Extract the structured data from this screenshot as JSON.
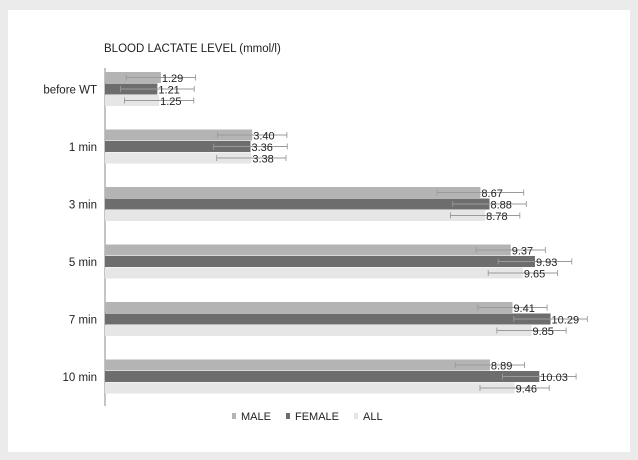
{
  "chart_data": {
    "type": "bar",
    "orientation": "horizontal",
    "title": "BLOOD LACTATE LEVEL (mmol/l)",
    "categories": [
      "before WT",
      "1 min",
      "3 min",
      "5 min",
      "7 min",
      "10 min"
    ],
    "series": [
      {
        "name": "MALE",
        "color": "#b4b4b4",
        "values": [
          1.29,
          3.4,
          8.67,
          9.37,
          9.41,
          8.89
        ],
        "labels": [
          "1.29",
          "3.40",
          "8.67",
          "9.37",
          "9.41",
          "8.89"
        ],
        "errors": [
          0.8,
          0.8,
          1.0,
          0.8,
          0.8,
          0.8
        ]
      },
      {
        "name": "FEMALE",
        "color": "#6d6d6d",
        "values": [
          1.21,
          3.36,
          8.88,
          9.93,
          10.29,
          10.03
        ],
        "labels": [
          "1.21",
          "3.36",
          "8.88",
          "9.93",
          "10.29",
          "10.03"
        ],
        "errors": [
          0.85,
          0.85,
          0.85,
          0.85,
          0.85,
          0.85
        ]
      },
      {
        "name": "ALL",
        "color": "#e6e6e6",
        "values": [
          1.25,
          3.38,
          8.78,
          9.65,
          9.85,
          9.46
        ],
        "labels": [
          "1.25",
          "3.38",
          "8.78",
          "9.65",
          "9.85",
          "9.46"
        ],
        "errors": [
          0.8,
          0.8,
          0.8,
          0.8,
          0.8,
          0.8
        ]
      }
    ],
    "xlim": [
      0,
      11
    ],
    "grid": false,
    "legend_position": "bottom"
  }
}
